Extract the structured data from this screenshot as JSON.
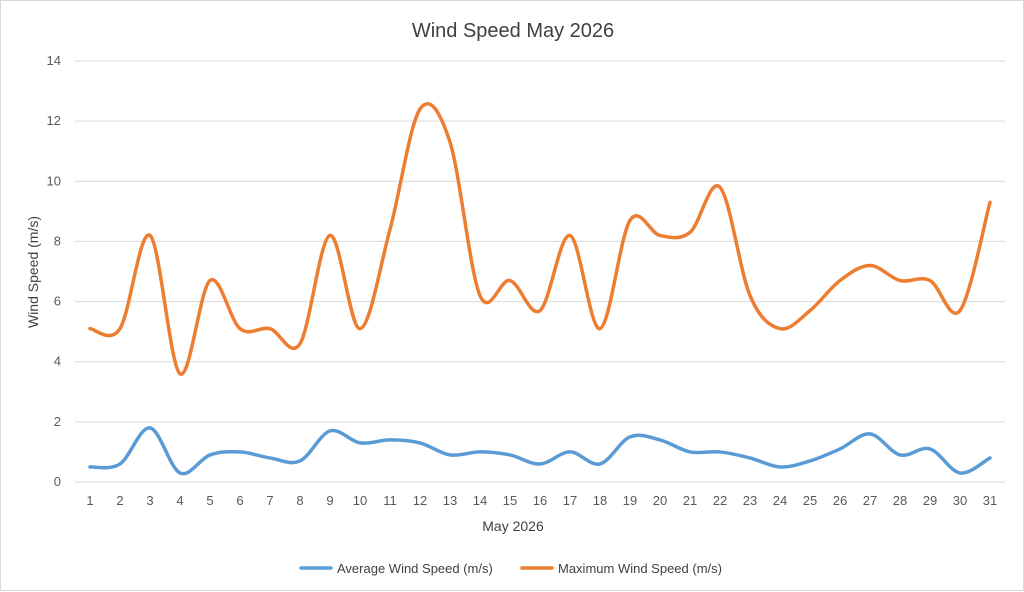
{
  "chart_data": {
    "type": "line",
    "title": "Wind Speed May 2026",
    "xlabel": "May 2026",
    "ylabel": "Wind Speed (m/s)",
    "x": [
      1,
      2,
      3,
      4,
      5,
      6,
      7,
      8,
      9,
      10,
      11,
      12,
      13,
      14,
      15,
      16,
      17,
      18,
      19,
      20,
      21,
      22,
      23,
      24,
      25,
      26,
      27,
      28,
      29,
      30,
      31
    ],
    "ylim": [
      0,
      14
    ],
    "yticks": [
      0,
      2,
      4,
      6,
      8,
      10,
      12,
      14
    ],
    "grid": true,
    "smooth": true,
    "legend_position": "bottom",
    "series": [
      {
        "name": "Average Wind Speed (m/s)",
        "color": "#5b9bd5",
        "values": [
          0.5,
          0.6,
          1.8,
          0.3,
          0.9,
          1.0,
          0.8,
          0.7,
          1.7,
          1.3,
          1.4,
          1.3,
          0.9,
          1.0,
          0.9,
          0.6,
          1.0,
          0.6,
          1.5,
          1.4,
          1.0,
          1.0,
          0.8,
          0.5,
          0.7,
          1.1,
          1.6,
          0.9,
          1.1,
          0.3,
          0.8
        ]
      },
      {
        "name": "Maximum Wind Speed (m/s)",
        "color": "#ed7d31",
        "values": [
          5.1,
          5.1,
          8.2,
          3.6,
          6.7,
          5.1,
          5.1,
          4.6,
          8.2,
          5.1,
          8.4,
          12.4,
          11.3,
          6.2,
          6.7,
          5.7,
          8.2,
          5.1,
          8.7,
          8.2,
          8.3,
          9.8,
          6.2,
          5.1,
          5.7,
          6.7,
          7.2,
          6.7,
          6.7,
          5.7,
          9.3
        ]
      }
    ]
  }
}
